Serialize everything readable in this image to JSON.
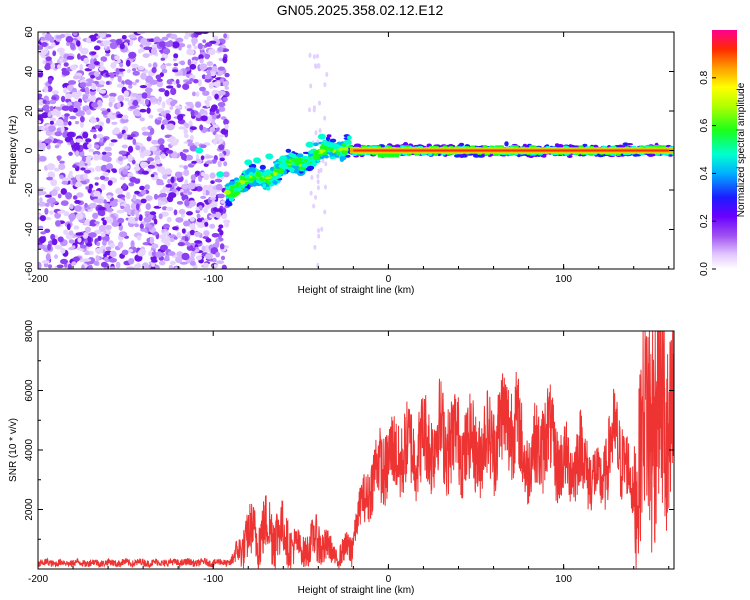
{
  "title": "GN05.2025.358.02.12.E12",
  "chart_data": [
    {
      "type": "heatmap",
      "xlabel": "Height of straight line (km)",
      "ylabel": "Frequency (Hz)",
      "xlim": [
        -200,
        163
      ],
      "ylim": [
        -60,
        60
      ],
      "x_ticks": [
        -200,
        -100,
        0,
        100
      ],
      "y_ticks": [
        -60,
        -40,
        -20,
        0,
        20,
        40,
        60
      ],
      "colorbar": {
        "label": "Normalized spectral amplitude",
        "range": [
          0,
          1
        ],
        "ticks": [
          "0.0",
          "0.2",
          "0.4",
          "0.6",
          "0.8"
        ]
      },
      "features": [
        {
          "name": "noise",
          "x_range": [
            -200,
            -92
          ],
          "y_range": [
            -60,
            60
          ]
        },
        {
          "name": "transition",
          "x_range": [
            -92,
            -22
          ],
          "center_y": [
            -20,
            5
          ]
        },
        {
          "name": "signal",
          "x_range": [
            -22,
            163
          ],
          "center_y": 0
        }
      ]
    },
    {
      "type": "line",
      "xlabel": "Height of straight line (km)",
      "ylabel": "SNR (10 * v/v)",
      "xlim": [
        -200,
        163
      ],
      "ylim": [
        0,
        8000
      ],
      "x_ticks": [
        -200,
        -100,
        0,
        100
      ],
      "y_ticks": [
        2000,
        4000,
        6000,
        8000
      ],
      "color": "#ee3333",
      "envelope": [
        {
          "x": -200,
          "y": 200
        },
        {
          "x": -90,
          "y": 220
        },
        {
          "x": -80,
          "y": 1100
        },
        {
          "x": -65,
          "y": 1400
        },
        {
          "x": -50,
          "y": 600
        },
        {
          "x": -40,
          "y": 1000
        },
        {
          "x": -30,
          "y": 400
        },
        {
          "x": -22,
          "y": 700
        },
        {
          "x": -15,
          "y": 2200
        },
        {
          "x": -5,
          "y": 3500
        },
        {
          "x": 5,
          "y": 3800
        },
        {
          "x": 20,
          "y": 4200
        },
        {
          "x": 30,
          "y": 4500
        },
        {
          "x": 50,
          "y": 4000
        },
        {
          "x": 60,
          "y": 4400
        },
        {
          "x": 70,
          "y": 5200
        },
        {
          "x": 80,
          "y": 3500
        },
        {
          "x": 90,
          "y": 4600
        },
        {
          "x": 100,
          "y": 3400
        },
        {
          "x": 110,
          "y": 3800
        },
        {
          "x": 120,
          "y": 2800
        },
        {
          "x": 130,
          "y": 4500
        },
        {
          "x": 140,
          "y": 2500
        },
        {
          "x": 150,
          "y": 6000
        },
        {
          "x": 163,
          "y": 4500
        }
      ]
    }
  ]
}
